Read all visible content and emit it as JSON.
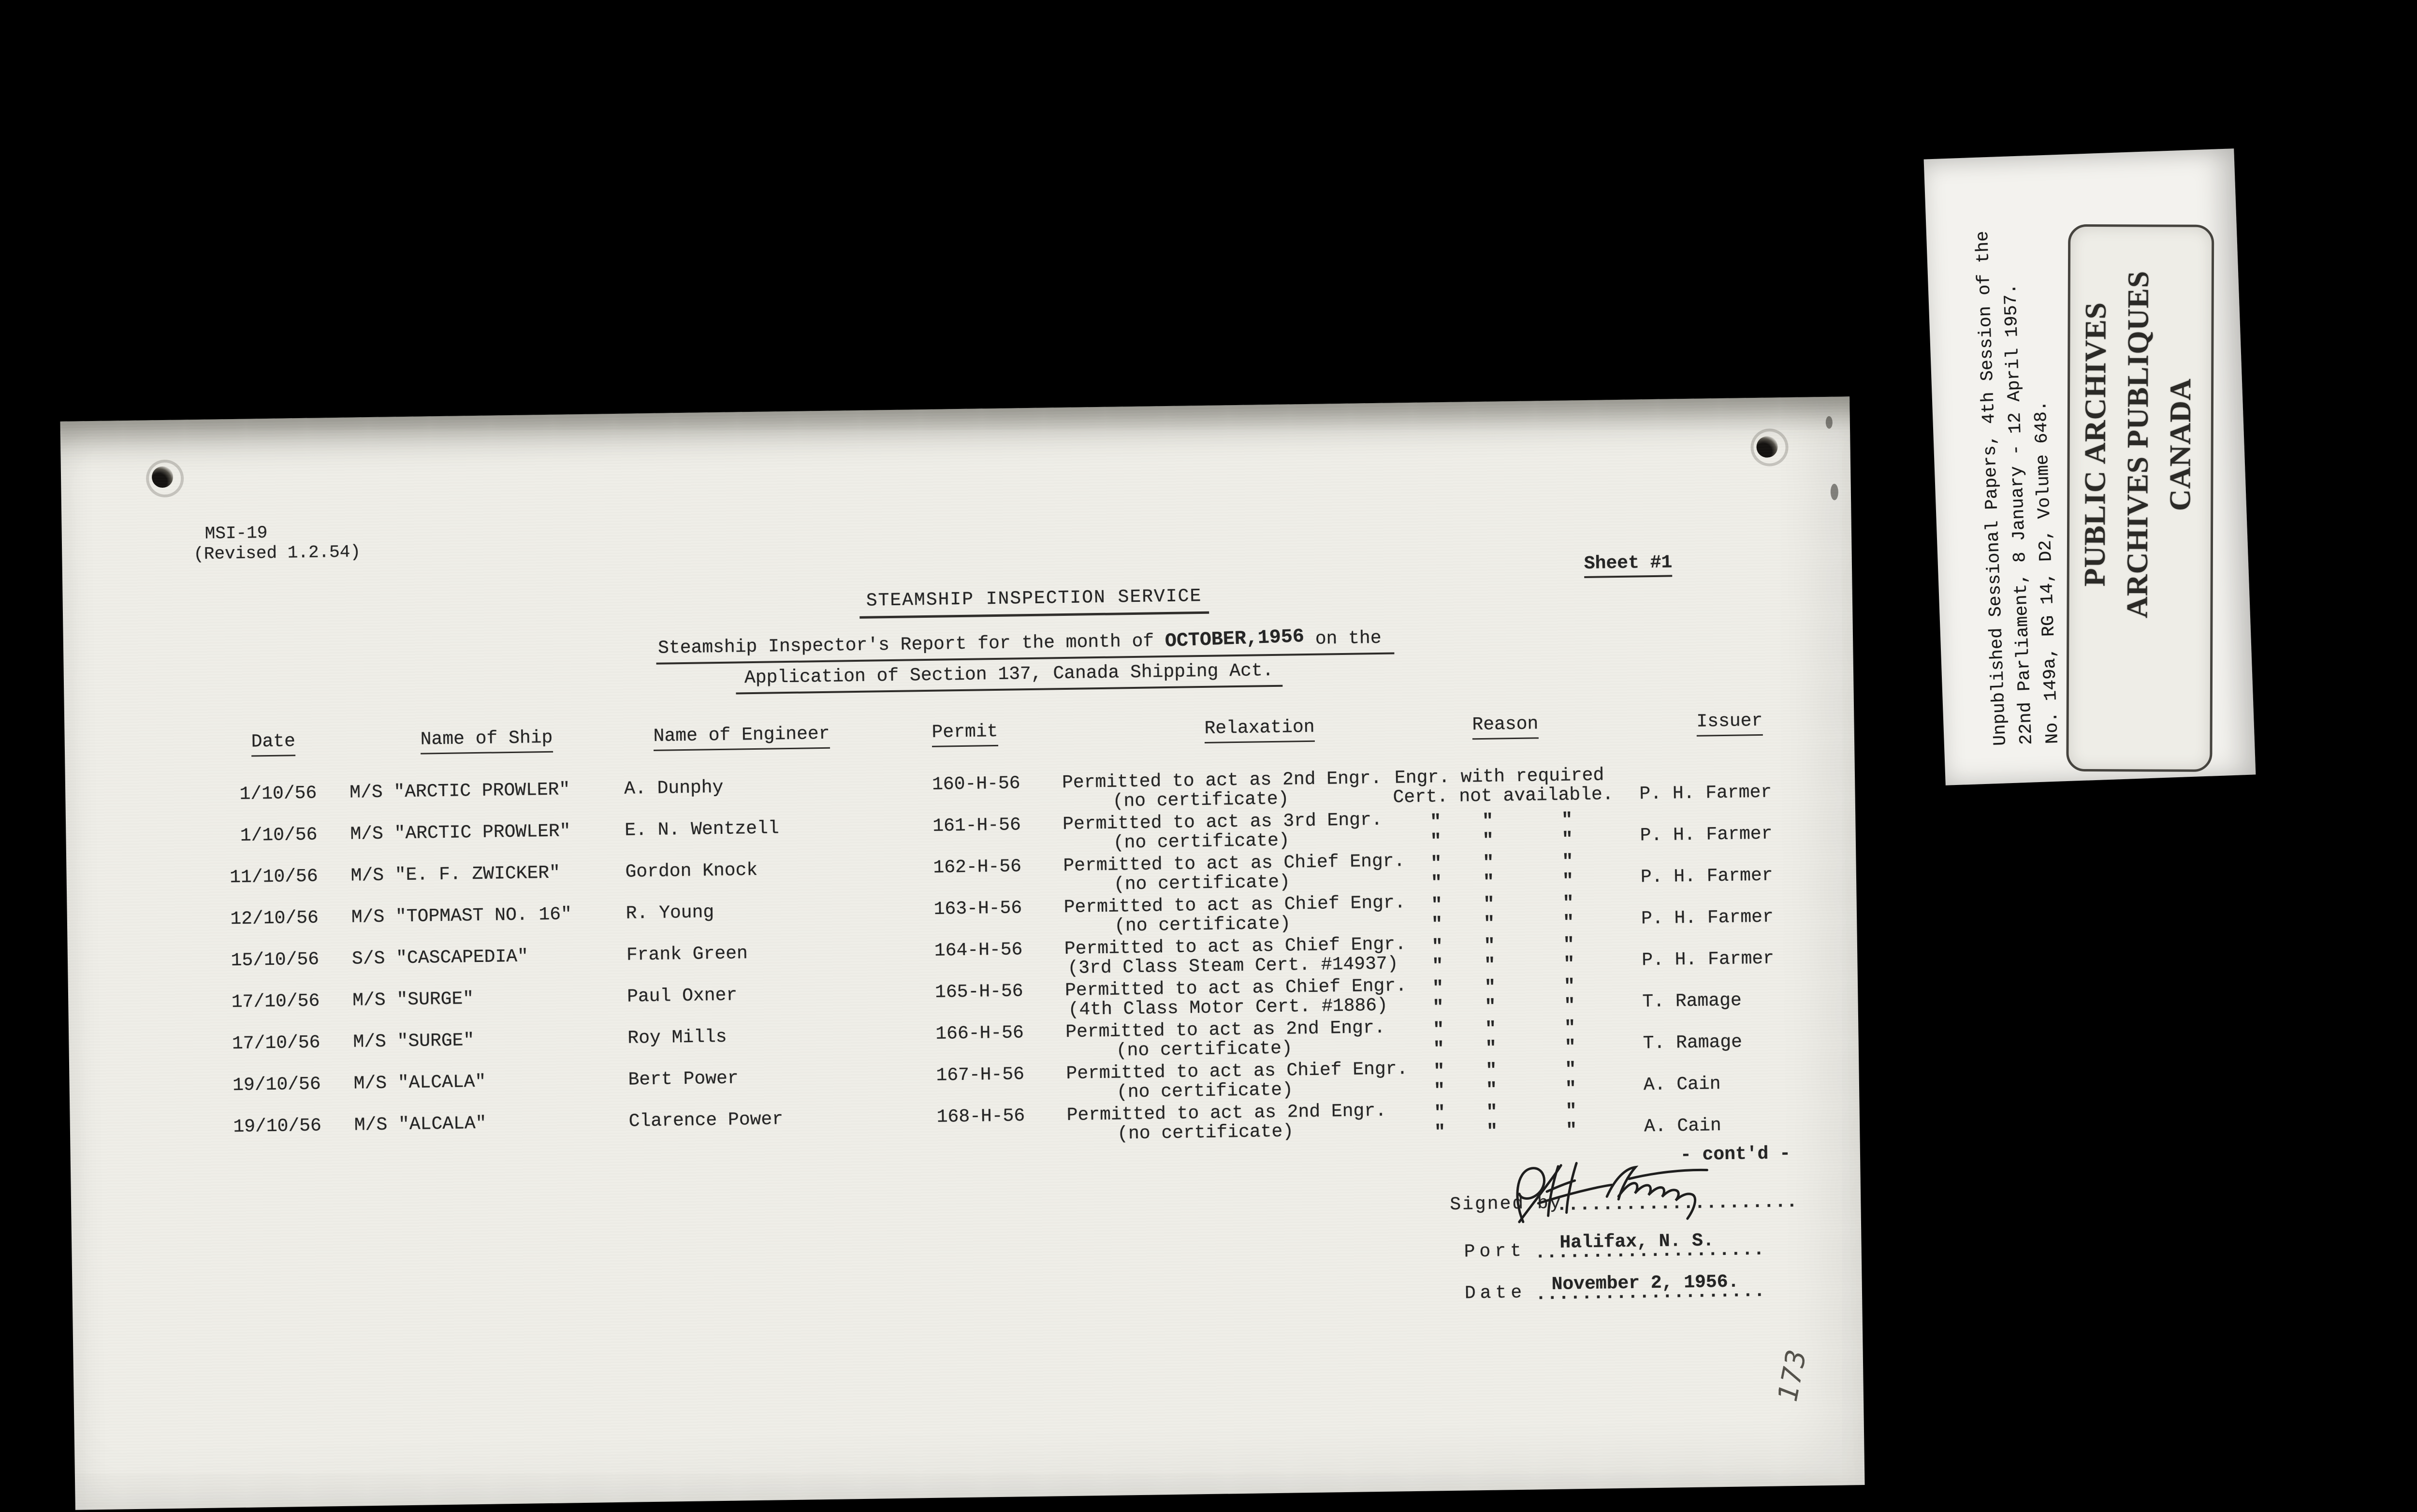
{
  "colors": {
    "background": "#000000",
    "page_paper": "#efeee8",
    "label_paper": "#f3f2ee",
    "ink": "#242424"
  },
  "page": {
    "form_number": "MSI-19",
    "form_revision": "(Revised 1.2.54)",
    "sheet_label": "Sheet #1",
    "title": "STEAMSHIP INSPECTION SERVICE",
    "report_line1_pre": "Steamship Inspector's Report for the month of ",
    "report_month": "OCTOBER,1956",
    "report_line1_post": " on the",
    "report_line2": "Application of Section 137, Canada Shipping Act.",
    "contd": "- cont'd -",
    "signature_script": "P.H. Farmer",
    "signed_by_label": "Signed by",
    "signed_dots": ".....................",
    "port_label": "Port",
    "port_dots": "....................",
    "port_value": "Halifax, N. S.",
    "date_label": "Date",
    "date_dots": "....................",
    "date_value": "November 2, 1956.",
    "handwritten_page_number": "173"
  },
  "table": {
    "headers": [
      "Date",
      "Name of Ship",
      "Name of Engineer",
      "Permit",
      "Relaxation",
      "Reason",
      "Issuer"
    ],
    "ditto_mark": "\"",
    "rows": [
      {
        "date": "1/10/56",
        "ship": "M/S \"ARCTIC PROWLER\"",
        "engineer": "A. Dunphy",
        "permit": "160-H-56",
        "relaxation_line1": "Permitted to act as 2nd Engr.",
        "relaxation_line2": "(no certificate)",
        "reason_line1": "Engr. with required",
        "reason_line2": "Cert. not available.",
        "issuer": "P. H. Farmer"
      },
      {
        "date": "1/10/56",
        "ship": "M/S \"ARCTIC PROWLER\"",
        "engineer": "E. N. Wentzell",
        "permit": "161-H-56",
        "relaxation_line1": "Permitted to act as 3rd Engr.",
        "relaxation_line2": "(no certificate)",
        "reason_ditto": true,
        "issuer": "P. H. Farmer"
      },
      {
        "date": "11/10/56",
        "ship": "M/S \"E. F. ZWICKER\"",
        "engineer": "Gordon Knock",
        "permit": "162-H-56",
        "relaxation_line1": "Permitted to act as Chief Engr.",
        "relaxation_line2": "(no certificate)",
        "reason_ditto": true,
        "issuer": "P. H. Farmer"
      },
      {
        "date": "12/10/56",
        "ship": "M/S \"TOPMAST NO. 16\"",
        "engineer": "R. Young",
        "permit": "163-H-56",
        "relaxation_line1": "Permitted to act as Chief Engr.",
        "relaxation_line2": "(no certificate)",
        "reason_ditto": true,
        "issuer": "P. H. Farmer"
      },
      {
        "date": "15/10/56",
        "ship": "S/S \"CASCAPEDIA\"",
        "engineer": "Frank Green",
        "permit": "164-H-56",
        "relaxation_line1": "Permitted to act as Chief Engr.",
        "relaxation_line2": "(3rd Class Steam Cert. #14937)",
        "reason_ditto": true,
        "issuer": "P. H. Farmer"
      },
      {
        "date": "17/10/56",
        "ship": "M/S \"SURGE\"",
        "engineer": "Paul Oxner",
        "permit": "165-H-56",
        "relaxation_line1": "Permitted to act as Chief Engr.",
        "relaxation_line2": "(4th Class Motor Cert. #1886)",
        "reason_ditto": true,
        "issuer": "T. Ramage"
      },
      {
        "date": "17/10/56",
        "ship": "M/S \"SURGE\"",
        "engineer": "Roy Mills",
        "permit": "166-H-56",
        "relaxation_line1": "Permitted to act as 2nd Engr.",
        "relaxation_line2": "(no certificate)",
        "reason_ditto": true,
        "issuer": "T. Ramage"
      },
      {
        "date": "19/10/56",
        "ship": "M/S \"ALCALA\"",
        "engineer": "Bert Power",
        "permit": "167-H-56",
        "relaxation_line1": "Permitted to act as Chief Engr.",
        "relaxation_line2": "(no certificate)",
        "reason_ditto": true,
        "issuer": "A. Cain"
      },
      {
        "date": "19/10/56",
        "ship": "M/S \"ALCALA\"",
        "engineer": "Clarence Power",
        "permit": "168-H-56",
        "relaxation_line1": "Permitted to act as 2nd Engr.",
        "relaxation_line2": "(no certificate)",
        "reason_ditto": true,
        "issuer": "A. Cain"
      }
    ]
  },
  "archive_label": {
    "line1": "Unpublished Sessional Papers, 4th Session of the",
    "line2": "22nd Parliament, 8 January - 12 April 1957.",
    "line3": "No. 149a, RG 14, D2, Volume 648.",
    "stamp_line1": "PUBLIC ARCHIVES",
    "stamp_line2": "ARCHIVES PUBLIQUES",
    "stamp_line3": "CANADA"
  }
}
